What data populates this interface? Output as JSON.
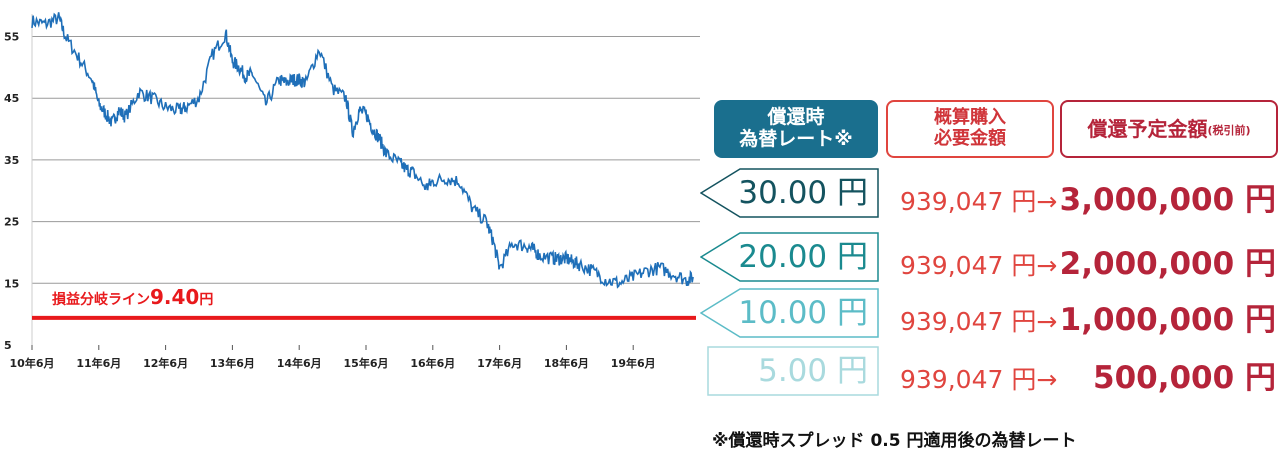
{
  "chart_data": {
    "type": "line",
    "ylim": [
      5,
      58
    ],
    "y_ticks": [
      5,
      15,
      25,
      35,
      45,
      55
    ],
    "x_tick_labels": [
      "10年6月",
      "11年6月",
      "12年6月",
      "13年6月",
      "14年6月",
      "15年6月",
      "16年6月",
      "17年6月",
      "18年6月",
      "19年6月"
    ],
    "x_tick_values": [
      0,
      1,
      2,
      3,
      4,
      5,
      6,
      7,
      8,
      9
    ],
    "xlim": [
      0,
      10.0
    ],
    "grid": true,
    "series": [
      {
        "x": [
          0.0,
          0.2,
          0.4,
          0.5,
          0.7,
          0.9,
          1.0,
          1.1,
          1.2,
          1.3,
          1.4,
          1.6,
          1.8,
          2.0,
          2.2,
          2.3,
          2.5,
          2.7,
          2.9,
          3.0,
          3.1,
          3.2,
          3.3,
          3.5,
          3.7,
          3.8,
          3.9,
          4.0,
          4.1,
          4.3,
          4.5,
          4.7,
          4.8,
          4.9,
          5.0,
          5.1,
          5.2,
          5.3,
          5.5,
          5.6,
          5.7,
          5.9,
          6.0,
          6.2,
          6.4,
          6.6,
          6.8,
          6.9,
          7.0,
          7.2,
          7.4,
          7.5,
          7.6,
          7.8,
          7.9,
          8.0,
          8.1,
          8.2,
          8.4,
          8.6,
          8.8,
          9.0,
          9.2,
          9.4,
          9.6,
          9.8,
          9.9
        ],
        "values": [
          57.5,
          57.0,
          58.0,
          55.0,
          51.5,
          48.0,
          44.0,
          42.5,
          41.0,
          43.0,
          42.0,
          46.0,
          45.0,
          43.5,
          43.0,
          43.5,
          45.0,
          52.0,
          55.5,
          51.0,
          50.0,
          48.5,
          49.0,
          44.0,
          48.0,
          47.5,
          48.0,
          48.0,
          47.5,
          53.0,
          46.5,
          45.0,
          39.5,
          43.0,
          42.5,
          40.0,
          38.5,
          36.0,
          34.5,
          33.5,
          33.0,
          30.5,
          31.5,
          32.0,
          31.5,
          27.0,
          25.0,
          22.0,
          17.5,
          21.5,
          21.0,
          20.5,
          19.5,
          19.0,
          19.0,
          19.0,
          18.5,
          18.0,
          17.0,
          15.5,
          15.0,
          16.0,
          17.0,
          17.5,
          16.5,
          15.5,
          16.0
        ]
      }
    ],
    "reference_line": {
      "value": 9.4,
      "label": "損益分岐ライン",
      "label_value": "9.40",
      "label_unit": "円",
      "color": "#e8191c"
    },
    "line_color": "#1f6fb8"
  },
  "headers": {
    "rate": [
      "償還時",
      "為替レート※"
    ],
    "amount": [
      "概算購入",
      "必要金額"
    ],
    "redemption": "償還予定金額",
    "redemption_note": "(税引前)"
  },
  "rows": [
    {
      "rate": "30.00 円",
      "amount": "939,047 円→",
      "redemption": "3,000,000 円",
      "color": "#14535f"
    },
    {
      "rate": "20.00 円",
      "amount": "939,047 円→",
      "redemption": "2,000,000 円",
      "color": "#1a8a8f"
    },
    {
      "rate": "10.00 円",
      "amount": "939,047 円→",
      "redemption": "1,000,000 円",
      "color": "#5cbcc7"
    },
    {
      "rate": "5.00 円",
      "amount": "939,047 円→",
      "redemption": "500,000 円",
      "color": "#a9dade"
    }
  ],
  "note": "※償還時スプレッド 0.5 円適用後の為替レート"
}
